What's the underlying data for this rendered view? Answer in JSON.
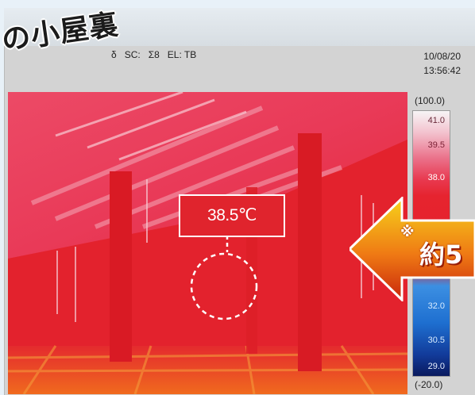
{
  "title": "の小屋裏",
  "status": {
    "partial_emissivity": "δ",
    "sc_label": "SC:",
    "sigma": "Σ8",
    "el_label": "EL: TB"
  },
  "datetime": {
    "date": "10/08/20",
    "time": "13:56:42"
  },
  "scale": {
    "max_label": "(100.0)",
    "min_label": "(-20.0)",
    "ticks": [
      "41.0",
      "39.5",
      "38.0",
      "32.0",
      "30.5",
      "29.0"
    ]
  },
  "reading": {
    "value": "38.5℃"
  },
  "callout": {
    "mark": "※",
    "text": "約5"
  },
  "colors": {
    "hot": "#e4202a",
    "highlight": "#f7f5f6",
    "cool": "#123b9a",
    "arrow_start": "#f6d21b",
    "arrow_end": "#c9260c"
  }
}
